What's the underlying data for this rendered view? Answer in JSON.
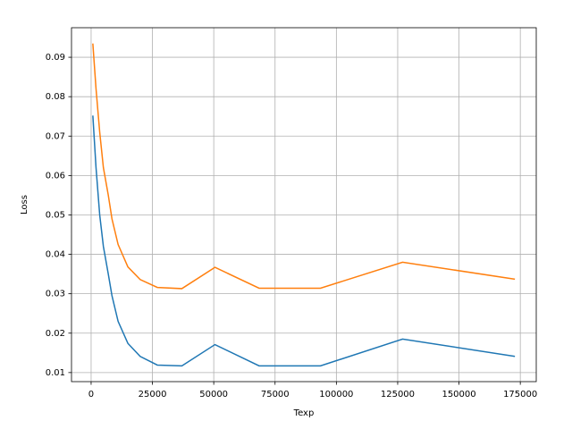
{
  "chart_data": {
    "type": "line",
    "x_label": "Texp",
    "y_label": "Loss",
    "x": [
      700,
      2000,
      3500,
      5000,
      7000,
      8500,
      11000,
      15000,
      20000,
      27000,
      37000,
      50500,
      68500,
      93500,
      127000,
      172800
    ],
    "series": [
      {
        "color": "#1f77b4",
        "values": [
          0.0752,
          0.062,
          0.05,
          0.042,
          0.035,
          0.0295,
          0.023,
          0.0174,
          0.0141,
          0.0119,
          0.0117,
          0.0171,
          0.0117,
          0.0117,
          0.0185,
          0.0141
        ]
      },
      {
        "color": "#ff7f0e",
        "values": [
          0.0935,
          0.082,
          0.071,
          0.062,
          0.055,
          0.049,
          0.0425,
          0.0368,
          0.0336,
          0.0316,
          0.0313,
          0.0367,
          0.0314,
          0.0314,
          0.038,
          0.0337
        ]
      }
    ],
    "xlim": [
      -8000,
      181500
    ],
    "xticks": [
      0,
      25000,
      50000,
      75000,
      100000,
      125000,
      150000,
      175000
    ],
    "ylim": [
      0.0077,
      0.0975
    ],
    "yticks": [
      0.01,
      0.02,
      0.03,
      0.04,
      0.05,
      0.06,
      0.07,
      0.08,
      0.09
    ],
    "grid": true
  }
}
